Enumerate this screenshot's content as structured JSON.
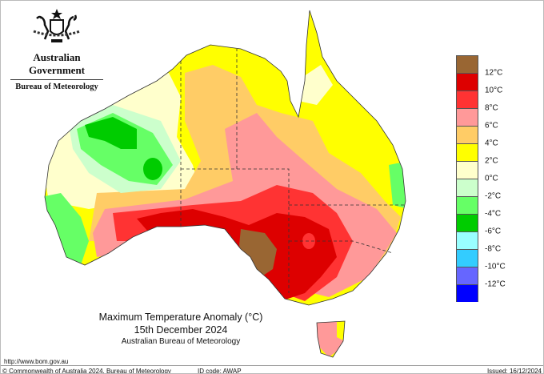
{
  "header": {
    "government": "Australian Government",
    "agency": "Bureau of Meteorology"
  },
  "map": {
    "title": "Maximum Temperature Anomaly (°C)",
    "date": "15th December 2024",
    "source": "Australian Bureau of Meteorology"
  },
  "legend": {
    "colors": [
      "#996633",
      "#dd0000",
      "#ff3333",
      "#ff9999",
      "#ffcc66",
      "#ffff00",
      "#ffffcc",
      "#ccffcc",
      "#66ff66",
      "#00cc00",
      "#99ffff",
      "#33ccff",
      "#6666ff",
      "#0000ff"
    ],
    "labels": [
      "12°C",
      "10°C",
      "8°C",
      "6°C",
      "4°C",
      "2°C",
      "0°C",
      "-2°C",
      "-4°C",
      "-6°C",
      "-8°C",
      "-10°C",
      "-12°C"
    ]
  },
  "footer": {
    "url": "http://www.bom.gov.au",
    "copyright": "© Commonwealth of Australia 2024, Bureau of Meteorology",
    "id_code": "ID code: AWAP",
    "issued": "Issued: 16/12/2024"
  }
}
